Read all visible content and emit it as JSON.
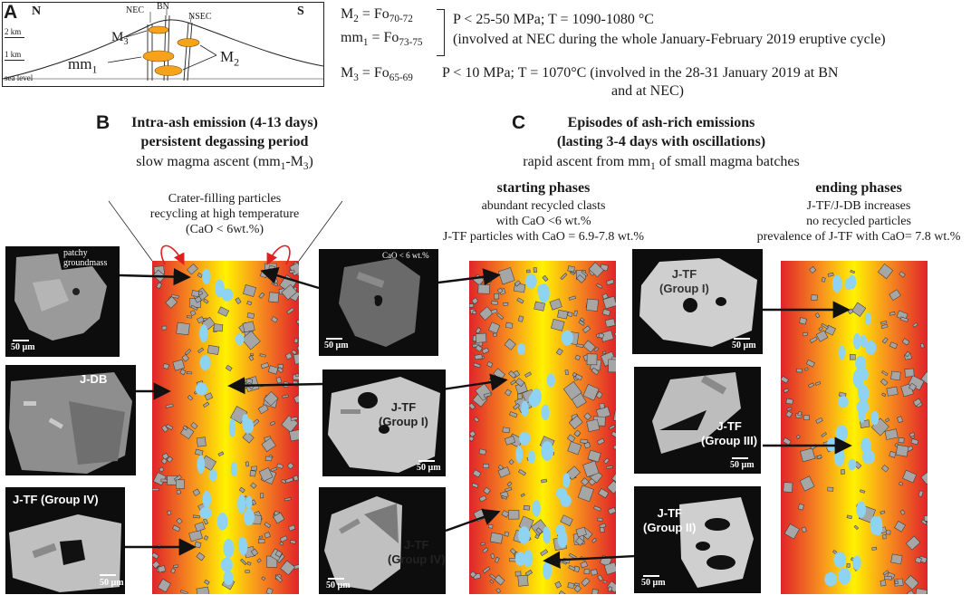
{
  "colors": {
    "column_edge": "#e0242a",
    "column_mid": "#f7931e",
    "column_core": "#fff200",
    "vesicle": "#8fd3f2",
    "crystal": "#a6a6a6",
    "magma_body": "#f7a21b",
    "arrow": "#111111",
    "recycle_arrow": "#e02020"
  },
  "panel_a": {
    "letter": "A",
    "north": "N",
    "south": "S",
    "vents": [
      "NEC",
      "BN",
      "NSEC"
    ],
    "scale": [
      "2 km",
      "1 km",
      "sea level"
    ],
    "magma_labels": {
      "m3": "M",
      "m3_sub": "3",
      "mm1": "mm",
      "mm1_sub": "1",
      "m2": "M",
      "m2_sub": "2"
    },
    "line1_left": "M",
    "line1_left_sub": "2",
    "line1_eq": " = Fo",
    "line1_eq_sub": "70-72",
    "line2_left": "mm",
    "line2_left_sub": "1",
    "line2_eq": " = Fo",
    "line2_eq_sub": "73-75",
    "conditions_1": "P < 25-50 MPa; T = 1090-1080 °C",
    "involvement_1": "(involved at NEC during the whole January-February 2019 eruptive cycle)",
    "line3_left": "M",
    "line3_left_sub": "3",
    "line3_eq": " = Fo",
    "line3_eq_sub": "65-69",
    "conditions_3": "P < 10 MPa; T = 1070°C  (involved in the 28-31 January 2019 at BN",
    "conditions_3b": "and at NEC)"
  },
  "panel_b": {
    "letter": "B",
    "title1": "Intra-ash emission  (4-13 days)",
    "title2": "persistent degassing period",
    "subtitle": "slow magma ascent (mm",
    "subtitle_sub": "1",
    "subtitle_end": "-M",
    "subtitle_sub2": "3",
    "subtitle_close": ")",
    "note1": "Crater-filling particles",
    "note2": "recycling at high temperature",
    "note3": "(CaO < 6wt.%)",
    "insets": [
      {
        "label": "patchy groundmass",
        "scale": "50 µm"
      },
      {
        "label": "J-DB",
        "scale": ""
      },
      {
        "label": "J-TF (Group IV)",
        "scale": "50 µm"
      }
    ]
  },
  "panel_c": {
    "letter": "C",
    "title1": "Episodes of ash-rich emissions",
    "title2": "(lasting 3-4 days with oscillations)",
    "subtitle": "rapid ascent from mm",
    "subtitle_sub": "1",
    "subtitle_end": " of small magma batches",
    "starting": {
      "title": "starting phases",
      "line1": "abundant recycled clasts",
      "line2": "with CaO <6 wt.%",
      "line3": "J-TF particles with CaO = 6.9-7.8 wt.%"
    },
    "ending": {
      "title": "ending phases",
      "line1": "J-TF/J-DB increases",
      "line2": "no recycled particles",
      "line3": "prevalence of J-TF with CaO= 7.8 wt.%"
    },
    "insets_start": [
      {
        "label": "CaO < 6 wt.%",
        "scale": "50 µm"
      },
      {
        "label1": "J-TF",
        "label2": "(Group I)",
        "scale": "50 µm"
      },
      {
        "label1": "J-TF",
        "label2": "(Group IV)",
        "scale": "50 µm"
      }
    ],
    "insets_end": [
      {
        "label1": "J-TF",
        "label2": "(Group I)",
        "scale": "50 µm"
      },
      {
        "label1": "J-TF",
        "label2": "(Group III)",
        "scale": "50 µm"
      },
      {
        "label1": "J-TF",
        "label2": "(Group II)",
        "scale": "50 µm"
      }
    ]
  }
}
